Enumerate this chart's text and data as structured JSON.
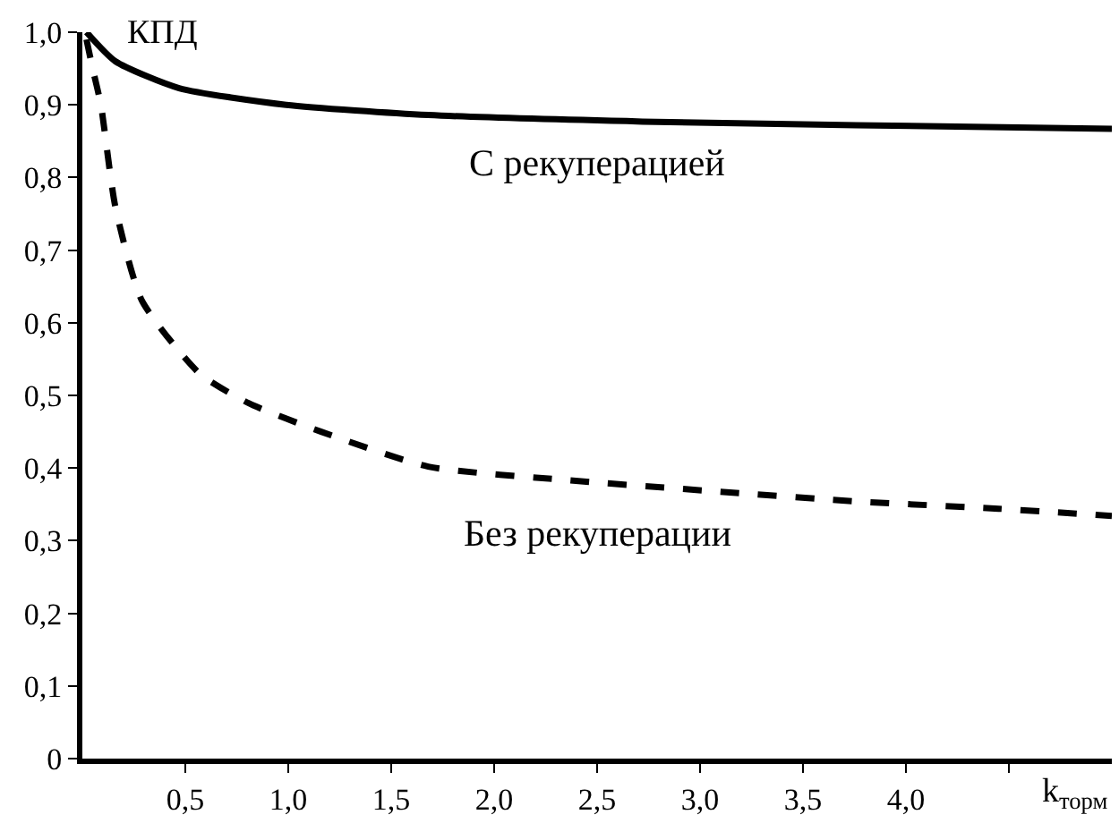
{
  "chart_data": {
    "type": "line",
    "ylabel": "КПД",
    "xlabel": "k$_{торм}$",
    "xlim": [
      0,
      5
    ],
    "ylim": [
      0,
      1.0
    ],
    "xticks": [
      {
        "value": 0.5,
        "label": "0,5"
      },
      {
        "value": 1.0,
        "label": "1,0"
      },
      {
        "value": 1.5,
        "label": "1,5"
      },
      {
        "value": 2.0,
        "label": "2,0"
      },
      {
        "value": 2.5,
        "label": "2,5"
      },
      {
        "value": 3.0,
        "label": "3,0"
      },
      {
        "value": 3.5,
        "label": "3,5"
      },
      {
        "value": 4.0,
        "label": "4,0"
      },
      {
        "value": 4.5,
        "label": null
      }
    ],
    "yticks": [
      0,
      {
        "value": 0.1,
        "label": "0,1"
      },
      {
        "value": 0.2,
        "label": "0,2"
      },
      {
        "value": 0.3,
        "label": "0,3"
      },
      {
        "value": 0.4,
        "label": "0,4"
      },
      {
        "value": 0.5,
        "label": "0,5"
      },
      {
        "value": 0.6,
        "label": "0,6"
      },
      {
        "value": 0.7,
        "label": "0,7"
      },
      {
        "value": 0.8,
        "label": "0,8"
      },
      {
        "value": 0.9,
        "label": "0,9"
      },
      {
        "value": 1.0,
        "label": "1,0"
      }
    ],
    "legend": false,
    "marker": "none",
    "series": [
      {
        "name": "С рекуперацией",
        "color": "#000000",
        "line_style": "solid",
        "x": [
          0.02,
          0.16,
          0.47,
          0.99,
          1.68,
          2.72,
          3.76,
          5.0
        ],
        "values": [
          1.0,
          0.96,
          0.923,
          0.9,
          0.886,
          0.877,
          0.872,
          0.867
        ]
      },
      {
        "name": "Без рекуперации",
        "color": "#000000",
        "line_style": "dashed",
        "x": [
          0.02,
          0.05,
          0.09,
          0.16,
          0.29,
          0.57,
          0.81,
          1.16,
          1.68,
          2.37,
          3.07,
          3.76,
          4.45,
          5.0
        ],
        "values": [
          0.99,
          0.95,
          0.9,
          0.76,
          0.63,
          0.53,
          0.489,
          0.45,
          0.402,
          0.383,
          0.368,
          0.354,
          0.344,
          0.334
        ]
      }
    ]
  }
}
